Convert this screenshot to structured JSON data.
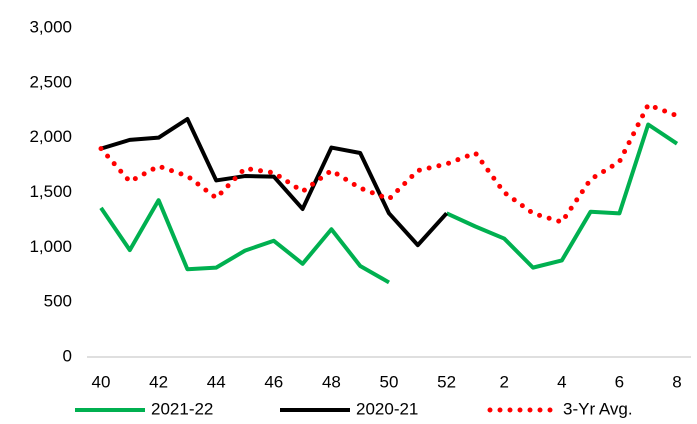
{
  "chart_data": {
    "type": "line",
    "categories": [
      "40",
      null,
      "42",
      null,
      "44",
      null,
      "46",
      null,
      "48",
      null,
      "50",
      null,
      "52",
      null,
      "2",
      null,
      "4",
      null,
      "6",
      null,
      "8"
    ],
    "series": [
      {
        "name": "2021-22",
        "color": "#00b050",
        "style": "solid",
        "values": [
          1360,
          975,
          1430,
          800,
          815,
          970,
          1060,
          850,
          1165,
          830,
          680,
          null,
          1310,
          1190,
          1080,
          815,
          880,
          1325,
          1310,
          2120,
          1945
        ]
      },
      {
        "name": "2020-21",
        "color": "#000000",
        "style": "solid",
        "values": [
          1900,
          1980,
          2000,
          2170,
          1610,
          1650,
          1645,
          1350,
          1910,
          1860,
          1310,
          1020,
          1310,
          null,
          null,
          null,
          null,
          null,
          null,
          null,
          null
        ]
      },
      {
        "name": "3-Yr Avg.",
        "color": "#ff0000",
        "style": "dotted",
        "values": [
          1900,
          1600,
          1740,
          1650,
          1450,
          1720,
          1680,
          1510,
          1700,
          1540,
          1440,
          1700,
          1760,
          1860,
          1500,
          1310,
          1230,
          1620,
          1780,
          2300,
          2200
        ]
      }
    ],
    "ylim": [
      0,
      3000
    ],
    "yticks": [
      0,
      500,
      {
        "value": 1000,
        "label": "1,000"
      },
      {
        "value": 1500,
        "label": "1,500"
      },
      {
        "value": 2000,
        "label": "2,000"
      },
      {
        "value": 2500,
        "label": "2,500"
      },
      {
        "value": 3000,
        "label": "3,000"
      }
    ],
    "grid": false,
    "legend": "bottom"
  }
}
